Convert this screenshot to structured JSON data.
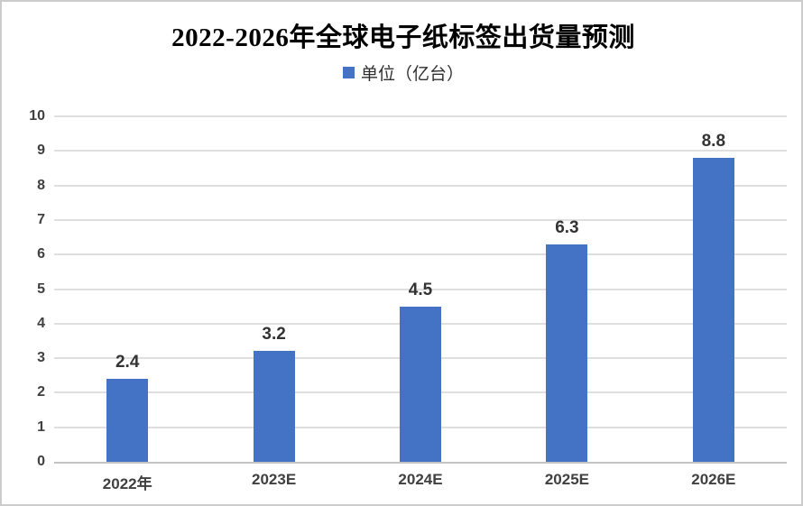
{
  "chart_data": {
    "type": "bar",
    "title": "2022-2026年全球电子纸标签出货量预测",
    "legend": "单位（亿台）",
    "categories": [
      "2022年",
      "2023E",
      "2024E",
      "2025E",
      "2026E"
    ],
    "values": [
      2.4,
      3.2,
      4.5,
      6.3,
      8.8
    ],
    "value_labels": [
      "2.4",
      "3.2",
      "4.5",
      "6.3",
      "8.8"
    ],
    "ylim": [
      0,
      10
    ],
    "ytick_step": 1,
    "yticks": [
      0,
      1,
      2,
      3,
      4,
      5,
      6,
      7,
      8,
      9,
      10
    ],
    "grid": true,
    "legend_position": "top",
    "xlabel": "",
    "ylabel": ""
  },
  "colors": {
    "bar": "#4472C4",
    "legend_swatch": "#4472C4",
    "gridline": "#dfdfdf",
    "axis_baseline": "#c3c3c3",
    "tick_label": "#404040",
    "data_label": "#333333",
    "title": "#000000",
    "frame_border": "#cccccc"
  }
}
